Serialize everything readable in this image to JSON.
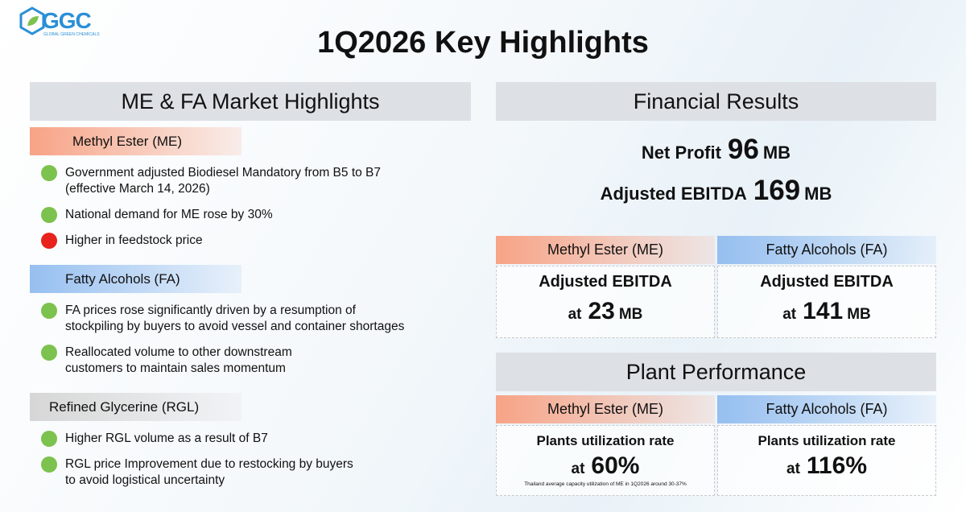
{
  "logo": {
    "mark": "GGC",
    "tagline": "GLOBAL GREEN CHEMICALS"
  },
  "title": "1Q2026 Key Highlights",
  "market": {
    "heading": "ME & FA Market Highlights",
    "sections": [
      {
        "label": "Methyl Ester (ME)",
        "color": "#f7a386",
        "items": [
          {
            "lines": [
              "Government adjusted Biodiesel Mandatory from B5 to B7",
              "(effective March 14, 2026)"
            ],
            "bullet": "#7cc24e"
          },
          {
            "lines": [
              "National demand for ME rose by 30%"
            ],
            "bullet": "#7cc24e"
          },
          {
            "lines": [
              "Higher in feedstock price"
            ],
            "bullet": "#e8221c"
          }
        ]
      },
      {
        "label": "Fatty Alcohols (FA)",
        "color": "#96bff0",
        "items": [
          {
            "lines": [
              "FA prices rose significantly driven by a resumption of",
              "stockpiling by buyers to avoid vessel and container shortages"
            ],
            "bullet": "#7cc24e"
          },
          {
            "lines": [
              "Reallocated volume to other downstream",
              "customers to maintain sales momentum"
            ],
            "bullet": "#7cc24e"
          }
        ]
      },
      {
        "label": "Refined Glycerine (RGL)",
        "color": "#d6d6d6",
        "items": [
          {
            "lines": [
              "Higher RGL volume as a result of B7"
            ],
            "bullet": "#7cc24e"
          },
          {
            "lines": [
              "RGL price Improvement due to restocking by buyers",
              "to avoid logistical uncertainty"
            ],
            "bullet": "#7cc24e"
          }
        ]
      }
    ]
  },
  "financial": {
    "heading": "Financial Results",
    "totals": [
      {
        "label": "Net Profit",
        "value": 96,
        "unit": "MB"
      },
      {
        "label": "Adjusted EBITDA",
        "value": 169,
        "unit": "MB"
      }
    ],
    "segments": [
      {
        "label": "Methyl Ester (ME)",
        "color": "#f7a386",
        "metric": "Adjusted EBITDA",
        "prefix": "at",
        "value": 23,
        "unit": "MB"
      },
      {
        "label": "Fatty Alcohols (FA)",
        "color": "#96bff0",
        "metric": "Adjusted EBITDA",
        "prefix": "at",
        "value": 141,
        "unit": "MB"
      }
    ]
  },
  "plant": {
    "heading": "Plant Performance",
    "segments": [
      {
        "label": "Methyl Ester (ME)",
        "color": "#f7a386",
        "metric": "Plants utilization rate",
        "prefix": "at",
        "value": 60,
        "unit": "%",
        "note": "Thailand average capacity utilization of ME in 1Q2026 around 30-37%"
      },
      {
        "label": "Fatty Alcohols (FA)",
        "color": "#96bff0",
        "metric": "Plants utilization rate",
        "prefix": "at",
        "value": 116,
        "unit": "%"
      }
    ]
  }
}
